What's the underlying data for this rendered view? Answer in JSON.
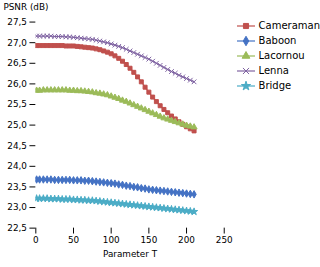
{
  "chart_data": {
    "type": "line",
    "xlabel": "Parameter T",
    "ylabel": "PSNR (dB)",
    "xlim": [
      0,
      250
    ],
    "ylim": [
      22.5,
      27.5
    ],
    "xticks": [
      0,
      50,
      100,
      150,
      200,
      250
    ],
    "yticks": [
      {
        "value": 22.5,
        "label": "22,5"
      },
      {
        "value": 23.0,
        "label": "23,0"
      },
      {
        "value": 23.5,
        "label": "23,5"
      },
      {
        "value": 24.0,
        "label": "24,0"
      },
      {
        "value": 24.5,
        "label": "24,5"
      },
      {
        "value": 25.0,
        "label": "25,0"
      },
      {
        "value": 25.5,
        "label": "25,5"
      },
      {
        "value": 26.0,
        "label": "26,0"
      },
      {
        "value": 26.5,
        "label": "26,5"
      },
      {
        "value": 27.0,
        "label": "27,0"
      },
      {
        "value": 27.5,
        "label": "27,5"
      }
    ],
    "grid": false,
    "legend": "upper right",
    "x": [
      1,
      5,
      10,
      15,
      20,
      25,
      30,
      35,
      40,
      45,
      50,
      55,
      60,
      65,
      70,
      75,
      80,
      85,
      90,
      95,
      100,
      105,
      110,
      115,
      120,
      125,
      130,
      135,
      140,
      145,
      150,
      155,
      160,
      165,
      170,
      175,
      180,
      185,
      190,
      195,
      200,
      205,
      210
    ],
    "series": [
      {
        "name": "Cameraman",
        "color": "#C0504D",
        "marker": "square",
        "values": [
          26.93,
          26.93,
          26.93,
          26.93,
          26.93,
          26.93,
          26.93,
          26.93,
          26.92,
          26.92,
          26.92,
          26.91,
          26.9,
          26.89,
          26.88,
          26.87,
          26.85,
          26.83,
          26.8,
          26.77,
          26.73,
          26.68,
          26.62,
          26.55,
          26.47,
          26.38,
          26.28,
          26.17,
          26.05,
          25.92,
          25.8,
          25.68,
          25.57,
          25.47,
          25.38,
          25.3,
          25.22,
          25.15,
          25.08,
          25.02,
          24.96,
          24.91,
          24.86
        ]
      },
      {
        "name": "Baboon",
        "color": "#4472C4",
        "marker": "diamond",
        "values": [
          23.68,
          23.68,
          23.68,
          23.68,
          23.68,
          23.67,
          23.67,
          23.67,
          23.67,
          23.67,
          23.66,
          23.66,
          23.66,
          23.65,
          23.65,
          23.64,
          23.63,
          23.62,
          23.61,
          23.6,
          23.59,
          23.58,
          23.56,
          23.55,
          23.53,
          23.52,
          23.5,
          23.49,
          23.47,
          23.46,
          23.44,
          23.43,
          23.42,
          23.41,
          23.4,
          23.39,
          23.38,
          23.37,
          23.36,
          23.35,
          23.34,
          23.33,
          23.32
        ]
      },
      {
        "name": "Lacornou",
        "color": "#9BBB59",
        "marker": "triangle",
        "values": [
          25.84,
          25.84,
          25.85,
          25.85,
          25.85,
          25.85,
          25.85,
          25.85,
          25.85,
          25.84,
          25.84,
          25.83,
          25.83,
          25.82,
          25.81,
          25.8,
          25.78,
          25.77,
          25.75,
          25.73,
          25.7,
          25.67,
          25.64,
          25.6,
          25.57,
          25.53,
          25.49,
          25.45,
          25.41,
          25.37,
          25.33,
          25.29,
          25.25,
          25.21,
          25.17,
          25.14,
          25.11,
          25.08,
          25.05,
          25.02,
          24.99,
          24.97,
          24.95
        ]
      },
      {
        "name": "Lenna",
        "color": "#8064A2",
        "marker": "x",
        "values": [
          27.16,
          27.16,
          27.16,
          27.16,
          27.16,
          27.15,
          27.15,
          27.15,
          27.14,
          27.14,
          27.13,
          27.12,
          27.11,
          27.1,
          27.09,
          27.08,
          27.06,
          27.04,
          27.02,
          27.0,
          26.97,
          26.94,
          26.91,
          26.88,
          26.84,
          26.8,
          26.76,
          26.72,
          26.68,
          26.64,
          26.6,
          26.55,
          26.5,
          26.45,
          26.4,
          26.35,
          26.3,
          26.26,
          26.21,
          26.17,
          26.13,
          26.09,
          26.05
        ]
      },
      {
        "name": "Bridge",
        "color": "#4BACC6",
        "marker": "star",
        "values": [
          23.22,
          23.22,
          23.22,
          23.22,
          23.21,
          23.21,
          23.21,
          23.2,
          23.2,
          23.2,
          23.19,
          23.19,
          23.18,
          23.18,
          23.17,
          23.17,
          23.16,
          23.15,
          23.14,
          23.13,
          23.12,
          23.11,
          23.1,
          23.09,
          23.08,
          23.07,
          23.06,
          23.05,
          23.04,
          23.03,
          23.02,
          23.01,
          23.0,
          22.99,
          22.98,
          22.97,
          22.96,
          22.95,
          22.94,
          22.93,
          22.92,
          22.91,
          22.9
        ]
      }
    ]
  }
}
